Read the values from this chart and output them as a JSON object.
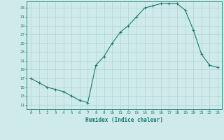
{
  "xlabel": "Humidex (Indice chaleur)",
  "ylabel": "",
  "x": [
    0,
    1,
    2,
    3,
    4,
    5,
    6,
    7,
    8,
    9,
    10,
    11,
    12,
    13,
    14,
    15,
    16,
    17,
    18,
    19,
    20,
    21,
    22,
    23
  ],
  "y": [
    17,
    16,
    15,
    14.5,
    14,
    13,
    12,
    11.5,
    20,
    22,
    25,
    27.5,
    29,
    31,
    33,
    33.5,
    34,
    34,
    34,
    32.5,
    28,
    22.5,
    20,
    19.5
  ],
  "line_color": "#1a7a6e",
  "marker": "+",
  "marker_size": 3,
  "bg_color": "#ceeaea",
  "grid_color": "#b0d4d4",
  "tick_label_color": "#1a7a6e",
  "xlabel_color": "#1a7a6e",
  "xlim": [
    -0.5,
    23.5
  ],
  "ylim": [
    10,
    34.5
  ],
  "yticks": [
    11,
    13,
    15,
    17,
    19,
    21,
    23,
    25,
    27,
    29,
    31,
    33
  ],
  "xticks": [
    0,
    1,
    2,
    3,
    4,
    5,
    6,
    7,
    8,
    9,
    10,
    11,
    12,
    13,
    14,
    15,
    16,
    17,
    18,
    19,
    20,
    21,
    22,
    23
  ],
  "xtick_labels": [
    "0",
    "1",
    "2",
    "3",
    "4",
    "5",
    "6",
    "7",
    "8",
    "9",
    "10",
    "11",
    "12",
    "13",
    "14",
    "15",
    "16",
    "17",
    "18",
    "19",
    "20",
    "21",
    "22",
    "23"
  ],
  "line_width": 0.8,
  "figsize": [
    3.2,
    2.0
  ],
  "dpi": 100
}
